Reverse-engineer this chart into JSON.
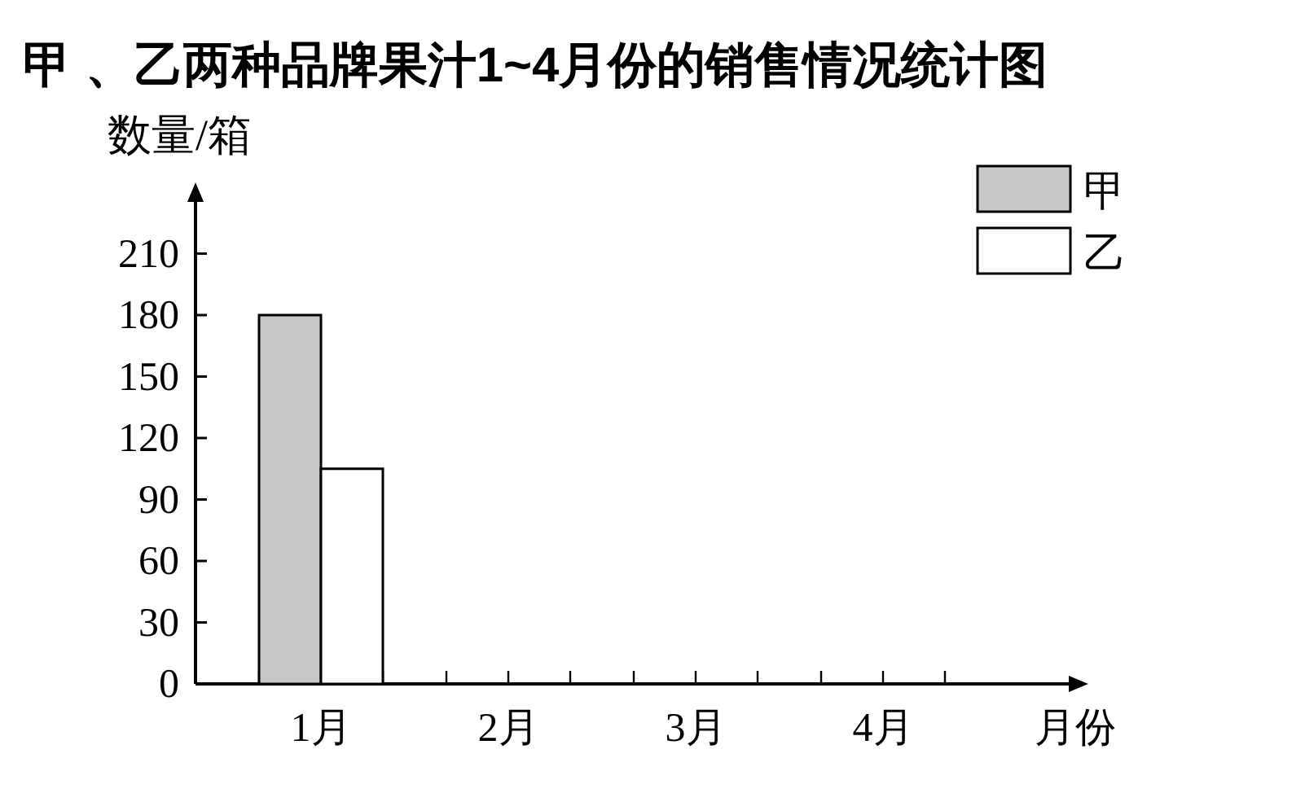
{
  "chart_data": {
    "type": "bar",
    "title": "甲 、乙两种品牌果汁1~4月份的销售情况统计图",
    "xlabel": "月份",
    "ylabel": "数量/箱",
    "categories": [
      "1月",
      "2月",
      "3月",
      "4月"
    ],
    "series": [
      {
        "name": "甲",
        "color": "#c8c8c8",
        "values": [
          180,
          null,
          null,
          null
        ]
      },
      {
        "name": "乙",
        "color": "#ffffff",
        "values": [
          105,
          null,
          null,
          null
        ]
      }
    ],
    "ylim": [
      0,
      240
    ],
    "yticks": [
      0,
      30,
      60,
      90,
      120,
      150,
      180,
      210
    ],
    "legend": "top right"
  }
}
